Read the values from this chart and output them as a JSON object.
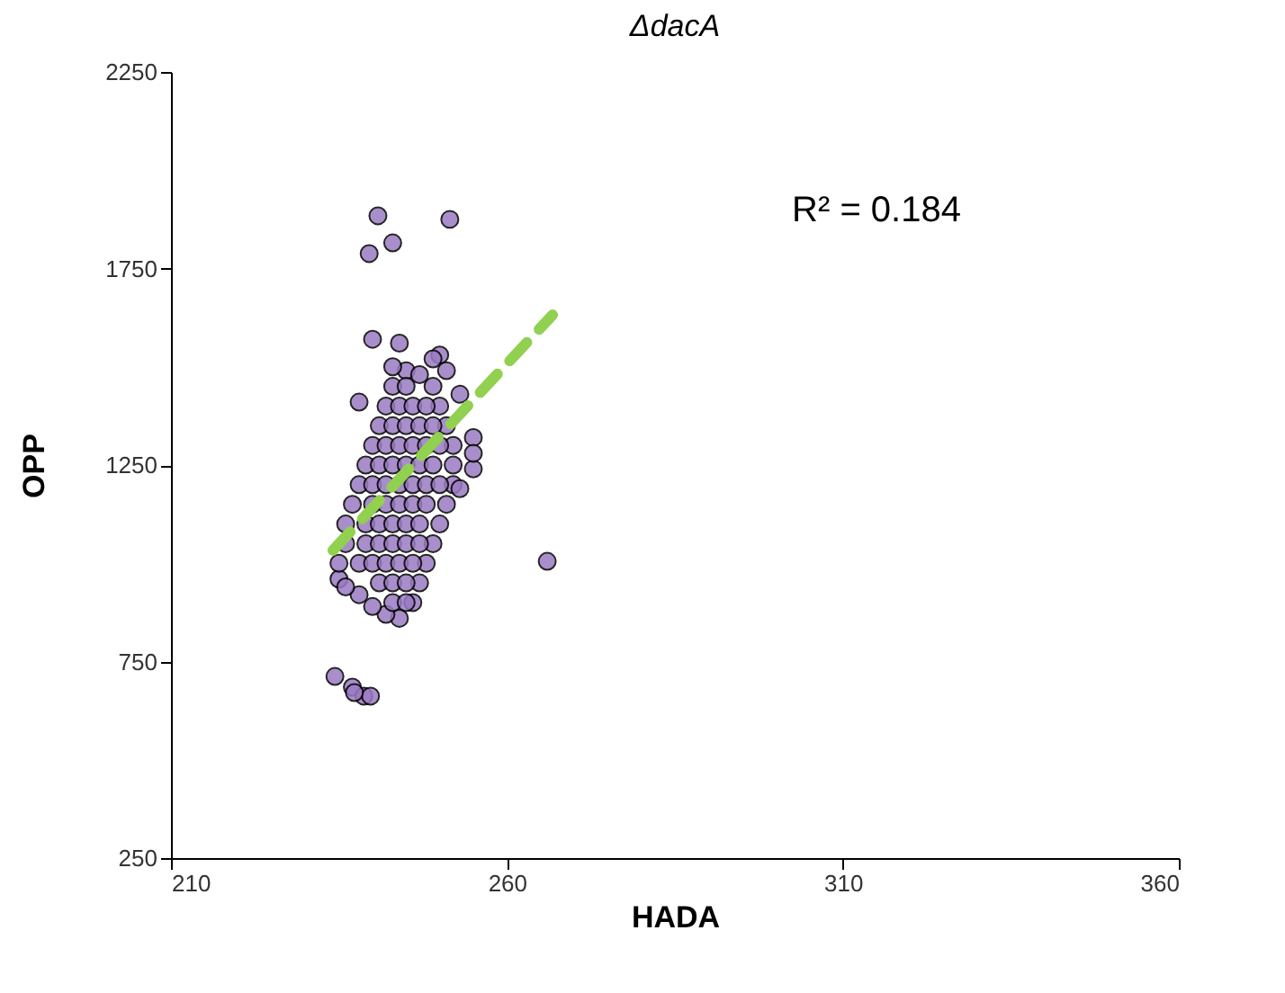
{
  "chart_data": {
    "type": "scatter",
    "title": "ΔdacA",
    "xlabel": "HADA",
    "ylabel": "OPP",
    "xlim": [
      210,
      360
    ],
    "xticks": [
      210,
      260,
      310,
      360
    ],
    "ylim": [
      250,
      2250
    ],
    "yticks": [
      250,
      750,
      1250,
      1750,
      2250
    ],
    "grid": false,
    "annotations": [
      "R² = 0.184"
    ],
    "series": [
      {
        "color": "#9b7bc4",
        "marker": "circle",
        "x": [
          240.8,
          251.5,
          243,
          239.5,
          234.4,
          237,
          238.7,
          239.7,
          237.3,
          266,
          235,
          235,
          236,
          236,
          237,
          238,
          239,
          240,
          241,
          242,
          243,
          245,
          247,
          249,
          250,
          251,
          252,
          252,
          252,
          251,
          250,
          249,
          248,
          247,
          246,
          244,
          242,
          240,
          238,
          236,
          240,
          244,
          243,
          251,
          253,
          255,
          255,
          253,
          255,
          238,
          250,
          249,
          238,
          240,
          242,
          244,
          246,
          239,
          241,
          243,
          245,
          247,
          240,
          242,
          244,
          246,
          248,
          250,
          242,
          244,
          246,
          248,
          250,
          244,
          246,
          248,
          241,
          243,
          245,
          239,
          241,
          243,
          245,
          247,
          240,
          242,
          244,
          246,
          248,
          241,
          243,
          245,
          247,
          249,
          243,
          245,
          247,
          249,
          245,
          243,
          245
        ],
        "values": [
          1884,
          1875,
          1815,
          1788,
          712,
          685,
          662,
          662,
          671,
          1005,
          960,
          1000,
          1050,
          1100,
          1150,
          1200,
          1250,
          1300,
          1350,
          1400,
          1450,
          1490,
          1480,
          1450,
          1400,
          1350,
          1300,
          1250,
          1200,
          1150,
          1100,
          1050,
          1000,
          950,
          900,
          860,
          870,
          890,
          920,
          940,
          1570,
          1560,
          1500,
          1490,
          1430,
          1320,
          1240,
          1190,
          1280,
          1410,
          1530,
          1520,
          1000,
          1000,
          1000,
          1000,
          1000,
          1100,
          1100,
          1100,
          1100,
          1100,
          1200,
          1200,
          1200,
          1200,
          1200,
          1200,
          1300,
          1300,
          1300,
          1300,
          1300,
          1400,
          1400,
          1400,
          950,
          950,
          950,
          1050,
          1050,
          1050,
          1050,
          1050,
          1150,
          1150,
          1150,
          1150,
          1150,
          1250,
          1250,
          1250,
          1250,
          1250,
          1350,
          1350,
          1350,
          1350,
          1450,
          900,
          900
        ]
      },
      {
        "type": "line",
        "color": "#92d050",
        "line_style": "dashed",
        "x": [
          234.1,
          266.8
        ],
        "values": [
          1033,
          1632
        ]
      }
    ]
  }
}
